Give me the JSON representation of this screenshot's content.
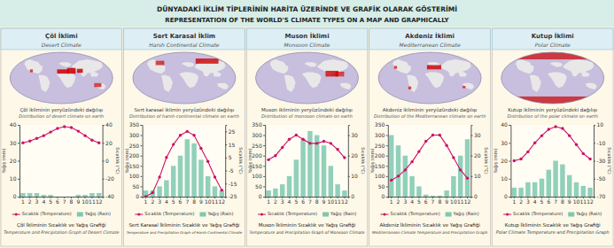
{
  "title": "DÜNYADAKİ İKLİM TİPLERİNİN HARİTA ÜZERİNDE VE GRAFİK OLARAK GÖSTERİMİ",
  "subtitle": "REPRESENTATION OF THE WORLD'S CLIMATE TYPES ON A MAP AND GRAPHICALLY",
  "chart_data": [
    {
      "type": "bar",
      "title": "Çöl İklimi",
      "subtitle": "Desert Climate",
      "annotations": [
        "Çöl ikliminin yeryüzündeki dağılışı",
        "Distribution of desert climate on earth",
        "Çöl İkliminin Sıcaklık ve Yağış Grafiği",
        "Temperature and Precipitation Graph of Desert Climate"
      ],
      "categories": [
        "1",
        "2",
        "3",
        "4",
        "5",
        "6",
        "7",
        "8",
        "9",
        "10",
        "11",
        "12"
      ],
      "series": [
        {
          "name": "Sıcaklık (Temperature)",
          "type": "line",
          "axis": "y2",
          "color": "#cc1166",
          "marker": "circle",
          "values": [
            20,
            22,
            25,
            28,
            32,
            36,
            38,
            37,
            33,
            28,
            23,
            20
          ]
        },
        {
          "name": "Yağış (Rain)",
          "type": "bar",
          "axis": "y",
          "color": "#7ec8b0",
          "values": [
            2,
            2,
            2,
            1,
            1,
            0,
            0,
            0,
            1,
            1,
            2,
            2
          ]
        }
      ],
      "ylabel": "Yağış (mm)",
      "y2label": "Sıcaklık (°C)",
      "ylim": [
        0,
        40
      ],
      "yticks": [
        0,
        10,
        20,
        30,
        40
      ],
      "y2lim": [
        -40,
        40
      ],
      "y2ticks": [
        -40,
        -20,
        0,
        20,
        40
      ],
      "grid": false
    },
    {
      "type": "bar",
      "title": "Sert Karasal İklim",
      "subtitle": "Harsh Continental Climate",
      "annotations": [
        "Sert karasal iklimin yeryüzündeki dağılışı",
        "Distribution of harsh-continental climate on earth",
        "Sert Karasal İkliminin Sıcaklık ve Yağış Grafiği",
        "Temperature and Precipitation Graph of Harsh Continental Climate"
      ],
      "categories": [
        "1",
        "2",
        "3",
        "4",
        "5",
        "6",
        "7",
        "8",
        "9",
        "10",
        "11",
        "12"
      ],
      "series": [
        {
          "name": "Sıcaklık (Temperature)",
          "type": "line",
          "axis": "y2",
          "color": "#cc1166",
          "marker": "circle",
          "values": [
            -25,
            -22,
            -10,
            5,
            15,
            22,
            25,
            22,
            12,
            2,
            -10,
            -20
          ]
        },
        {
          "name": "Yağış (Rain)",
          "type": "bar",
          "axis": "y",
          "color": "#7ec8b0",
          "values": [
            30,
            30,
            50,
            80,
            150,
            200,
            280,
            260,
            180,
            100,
            50,
            30
          ]
        }
      ],
      "ylabel": "Yağış (mm)",
      "y2label": "Sıcaklık (°C)",
      "ylim": [
        0,
        350
      ],
      "yticks": [
        0,
        50,
        100,
        150,
        200,
        250,
        300,
        350
      ],
      "y2lim": [
        -25,
        30
      ],
      "y2ticks": [
        -25,
        -15,
        -5,
        5,
        15,
        25
      ],
      "grid": false
    },
    {
      "type": "bar",
      "title": "Muson İklimi",
      "subtitle": "Monsoon Climate",
      "annotations": [
        "Muson ikliminin yeryüzündeki dağılışı",
        "Distribution of monsoon climate on earth",
        "Muson İkliminin Sıcaklık ve Yağış Grafiği",
        "Temperature and Precipitation Graph of Monsoon Climate"
      ],
      "categories": [
        "1",
        "2",
        "3",
        "4",
        "5",
        "6",
        "7",
        "8",
        "9",
        "10",
        "11",
        "12"
      ],
      "series": [
        {
          "name": "Sıcaklık (Temperature)",
          "type": "line",
          "axis": "y2",
          "color": "#cc1166",
          "marker": "circle",
          "values": [
            18,
            20,
            24,
            28,
            30,
            28,
            26,
            26,
            27,
            26,
            23,
            19
          ]
        },
        {
          "name": "Yağış (Rain)",
          "type": "bar",
          "axis": "y",
          "color": "#7ec8b0",
          "values": [
            30,
            40,
            60,
            100,
            180,
            280,
            320,
            300,
            250,
            150,
            60,
            30
          ]
        }
      ],
      "ylabel": "Yağış (mm)",
      "y2label": "Sıcaklık (°C)",
      "ylim": [
        0,
        350
      ],
      "yticks": [
        0,
        50,
        100,
        150,
        200,
        250,
        300,
        350
      ],
      "y2lim": [
        0,
        35
      ],
      "y2ticks": [
        0,
        10,
        20,
        30
      ],
      "grid": false
    },
    {
      "type": "bar",
      "title": "Akdeniz İklimi",
      "subtitle": "Mediterranean Climate",
      "annotations": [
        "Akdeniz ikliminin yeryüzündeki dağılışı",
        "Distribution of the Mediterranean climate on earth",
        "Akdeniz İkliminin Sıcaklık ve Yağış Grafiği",
        "Mediterranean Climate Temperature and Precipitation Graph"
      ],
      "categories": [
        "1",
        "2",
        "3",
        "4",
        "5",
        "6",
        "7",
        "8",
        "9",
        "10",
        "11",
        "12"
      ],
      "series": [
        {
          "name": "Sıcaklık (Temperature)",
          "type": "line",
          "axis": "y2",
          "color": "#cc1166",
          "marker": "circle",
          "values": [
            8,
            10,
            13,
            17,
            22,
            27,
            30,
            30,
            25,
            19,
            13,
            9
          ]
        },
        {
          "name": "Yağış (Rain)",
          "type": "bar",
          "axis": "y",
          "color": "#7ec8b0",
          "values": [
            300,
            250,
            200,
            100,
            50,
            10,
            5,
            5,
            30,
            100,
            200,
            280
          ]
        }
      ],
      "ylabel": "Yağış (mm)",
      "y2label": "Sıcaklık (°C)",
      "ylim": [
        0,
        350
      ],
      "yticks": [
        0,
        50,
        100,
        150,
        200,
        250,
        300,
        350
      ],
      "y2lim": [
        0,
        35
      ],
      "y2ticks": [
        0,
        10,
        20,
        30
      ],
      "grid": false
    },
    {
      "type": "bar",
      "title": "Kutup İklimi",
      "subtitle": "Polar Climate",
      "annotations": [
        "Kutup ikliminin yeryüzündeki dağılışı",
        "Distribution of the polar climate on earth",
        "Kutup İkliminin Sıcaklık ve Yağış Grafiği",
        "Polar Climate Temperature and Precipitation Graph"
      ],
      "categories": [
        "1",
        "2",
        "3",
        "4",
        "5",
        "6",
        "7",
        "8",
        "9",
        "10",
        "11",
        "12"
      ],
      "series": [
        {
          "name": "Sıcaklık (Temperature)",
          "type": "line",
          "axis": "y2",
          "color": "#cc1166",
          "marker": "circle",
          "values": [
            -30,
            -28,
            -20,
            -10,
            -2,
            5,
            8,
            6,
            -2,
            -12,
            -22,
            -28
          ]
        },
        {
          "name": "Yağış (Rain)",
          "type": "bar",
          "axis": "y",
          "color": "#7ec8b0",
          "values": [
            5,
            5,
            8,
            8,
            10,
            15,
            20,
            18,
            12,
            8,
            6,
            5
          ]
        }
      ],
      "ylabel": "Yağış (mm)",
      "y2label": "Sıcaklık (°C)",
      "ylim": [
        0,
        40
      ],
      "yticks": [
        0,
        10,
        20,
        30,
        40
      ],
      "y2lim": [
        -70,
        10
      ],
      "y2ticks": [
        -70,
        -50,
        -30,
        -10,
        10
      ],
      "grid": false
    }
  ]
}
